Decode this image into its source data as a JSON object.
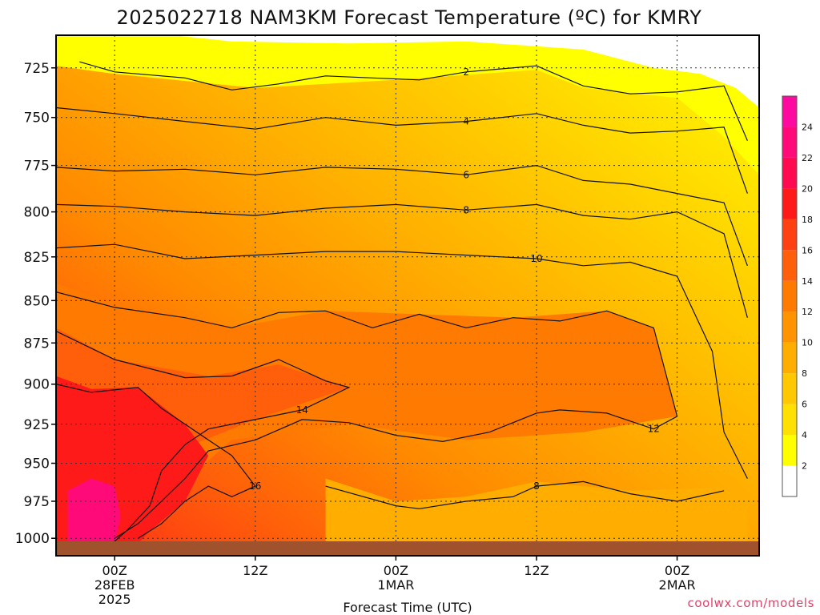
{
  "chart_data": {
    "type": "heatmap",
    "title": "2025022718 NAM3KM Forecast Temperature (ºC) for KMRY",
    "xlabel": "Forecast Time (UTC)",
    "ylabel": "",
    "y_axis": {
      "scale": "log",
      "ticks": [
        725,
        750,
        775,
        800,
        825,
        850,
        875,
        900,
        925,
        950,
        975,
        1000
      ],
      "range": [
        709,
        1012
      ]
    },
    "x_axis": {
      "range_hours": [
        -5,
        55
      ],
      "ticks": [
        {
          "hour": 0,
          "label": "00Z",
          "sub1": "28FEB",
          "sub2": "2025"
        },
        {
          "hour": 12,
          "label": "12Z",
          "sub1": "",
          "sub2": ""
        },
        {
          "hour": 24,
          "label": "00Z",
          "sub1": "1MAR",
          "sub2": ""
        },
        {
          "hour": 36,
          "label": "12Z",
          "sub1": "",
          "sub2": ""
        },
        {
          "hour": 48,
          "label": "00Z",
          "sub1": "2MAR",
          "sub2": ""
        }
      ]
    },
    "grid": true,
    "colorbar": {
      "placement": "right",
      "levels": [
        2,
        4,
        6,
        8,
        10,
        12,
        14,
        16,
        18,
        20,
        22,
        24
      ],
      "colors": [
        "#ffffff",
        "#ffff00",
        "#ffe000",
        "#ffc800",
        "#ffae00",
        "#ff9400",
        "#ff7a00",
        "#ff5e0a",
        "#ff4012",
        "#ff1a1a",
        "#ff0a50",
        "#ff0a78",
        "#ff0aa0"
      ]
    },
    "isotherms": [
      {
        "label": "2",
        "points": [
          [
            -3,
            722
          ],
          [
            0,
            727
          ],
          [
            6,
            730
          ],
          [
            10,
            736
          ],
          [
            14,
            733
          ],
          [
            18,
            729
          ],
          [
            26,
            731
          ],
          [
            30,
            727
          ],
          [
            36,
            724
          ],
          [
            40,
            734
          ],
          [
            44,
            738
          ],
          [
            48,
            737
          ],
          [
            52,
            734
          ],
          [
            54,
            762
          ]
        ]
      },
      {
        "label": "4",
        "points": [
          [
            -5,
            745
          ],
          [
            0,
            748
          ],
          [
            6,
            752
          ],
          [
            12,
            756
          ],
          [
            18,
            750
          ],
          [
            24,
            754
          ],
          [
            30,
            752
          ],
          [
            36,
            748
          ],
          [
            40,
            754
          ],
          [
            44,
            758
          ],
          [
            48,
            757
          ],
          [
            52,
            755
          ],
          [
            54,
            790
          ]
        ]
      },
      {
        "label": "6",
        "points": [
          [
            -5,
            776
          ],
          [
            0,
            778
          ],
          [
            6,
            777
          ],
          [
            12,
            780
          ],
          [
            18,
            776
          ],
          [
            24,
            777
          ],
          [
            30,
            780
          ],
          [
            36,
            775
          ],
          [
            40,
            783
          ],
          [
            44,
            785
          ],
          [
            48,
            790
          ],
          [
            52,
            795
          ],
          [
            54,
            830
          ]
        ]
      },
      {
        "label": "8",
        "points": [
          [
            -5,
            796
          ],
          [
            0,
            797
          ],
          [
            6,
            800
          ],
          [
            12,
            802
          ],
          [
            18,
            798
          ],
          [
            24,
            796
          ],
          [
            30,
            799
          ],
          [
            36,
            796
          ],
          [
            40,
            802
          ],
          [
            44,
            804
          ],
          [
            48,
            800
          ],
          [
            52,
            812
          ],
          [
            54,
            860
          ]
        ]
      },
      {
        "label": "10",
        "points": [
          [
            -5,
            820
          ],
          [
            0,
            818
          ],
          [
            6,
            826
          ],
          [
            12,
            824
          ],
          [
            18,
            822
          ],
          [
            24,
            822
          ],
          [
            30,
            824
          ],
          [
            36,
            826
          ],
          [
            40,
            830
          ],
          [
            44,
            828
          ],
          [
            48,
            836
          ],
          [
            51,
            880
          ],
          [
            52,
            930
          ],
          [
            54,
            960
          ]
        ]
      },
      {
        "label": "12",
        "points": [
          [
            -5,
            845
          ],
          [
            0,
            854
          ],
          [
            6,
            860
          ],
          [
            10,
            866
          ],
          [
            14,
            857
          ],
          [
            18,
            856
          ],
          [
            22,
            866
          ],
          [
            26,
            858
          ],
          [
            30,
            866
          ],
          [
            34,
            860
          ],
          [
            38,
            862
          ],
          [
            42,
            856
          ],
          [
            46,
            866
          ],
          [
            48,
            920
          ],
          [
            46,
            928
          ],
          [
            42,
            918
          ],
          [
            38,
            916
          ],
          [
            36,
            918
          ],
          [
            32,
            930
          ],
          [
            28,
            936
          ],
          [
            24,
            932
          ],
          [
            20,
            924
          ],
          [
            16,
            922
          ],
          [
            12,
            935
          ],
          [
            8,
            942
          ],
          [
            6,
            960
          ],
          [
            4,
            975
          ],
          [
            2,
            990
          ],
          [
            0,
            1000
          ]
        ]
      },
      {
        "label": "14",
        "points": [
          [
            -5,
            868
          ],
          [
            0,
            885
          ],
          [
            6,
            896
          ],
          [
            10,
            895
          ],
          [
            14,
            885
          ],
          [
            18,
            898
          ],
          [
            20,
            902
          ],
          [
            16,
            916
          ],
          [
            12,
            922
          ],
          [
            8,
            928
          ],
          [
            6,
            938
          ],
          [
            4,
            955
          ],
          [
            3,
            978
          ],
          [
            1,
            995
          ],
          [
            0,
            1002
          ]
        ]
      },
      {
        "label": "16",
        "points": [
          [
            -5,
            900
          ],
          [
            -2,
            905
          ],
          [
            2,
            902
          ],
          [
            4,
            915
          ],
          [
            8,
            935
          ],
          [
            10,
            945
          ],
          [
            12,
            965
          ],
          [
            10,
            972
          ],
          [
            8,
            965
          ],
          [
            6,
            975
          ],
          [
            4,
            990
          ],
          [
            2,
            1000
          ]
        ]
      },
      {
        "label": "8",
        "points": [
          [
            18,
            965
          ],
          [
            24,
            978
          ],
          [
            26,
            980
          ],
          [
            30,
            975
          ],
          [
            34,
            972
          ],
          [
            36,
            965
          ],
          [
            40,
            962
          ],
          [
            44,
            970
          ],
          [
            48,
            975
          ],
          [
            52,
            968
          ]
        ]
      }
    ],
    "annotations": [
      "2",
      "2",
      "2",
      "4",
      "4",
      "4",
      "6",
      "6",
      "6",
      "8",
      "8",
      "8",
      "10",
      "10",
      "10",
      "10",
      "12",
      "12",
      "12",
      "12",
      "12",
      "14",
      "14",
      "14",
      "16",
      "16",
      "12",
      "8",
      "8"
    ]
  },
  "credit": "coolwx.com/models"
}
